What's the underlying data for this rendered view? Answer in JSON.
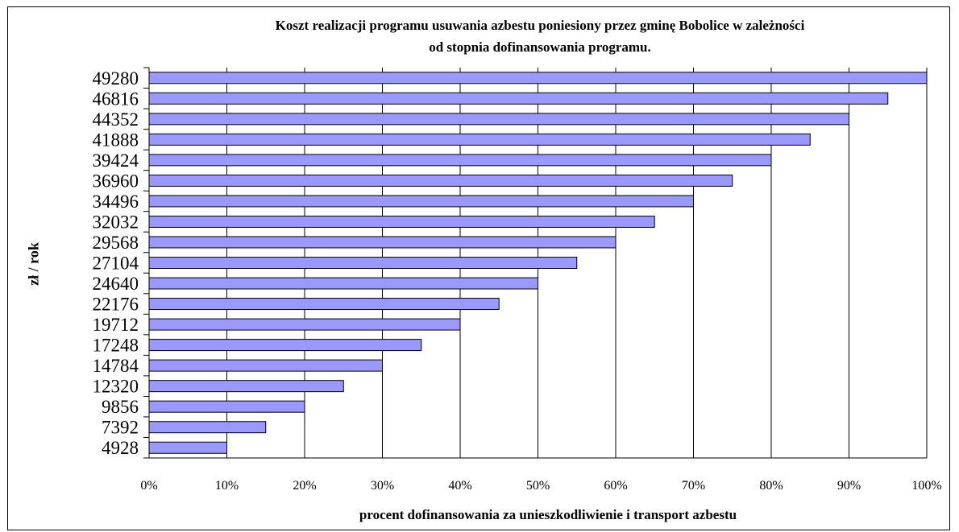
{
  "chart_data": {
    "type": "bar",
    "orientation": "horizontal",
    "title_line1": "Koszt realizacji programu usuwania azbestu poniesiony przez gminę Bobolice w zależności",
    "title_line2": "od stopnia dofinansowania programu.",
    "xlabel": "procent dofinansowania za unieszkodliwienie i transport azbestu",
    "ylabel": "zł / rok",
    "categories": [
      "49280",
      "46816",
      "44352",
      "41888",
      "39424",
      "36960",
      "34496",
      "32032",
      "29568",
      "27104",
      "24640",
      "22176",
      "19712",
      "17248",
      "14784",
      "12320",
      "9856",
      "7392",
      "4928"
    ],
    "values": [
      100,
      95,
      90,
      85,
      80,
      75,
      70,
      65,
      60,
      55,
      50,
      45,
      40,
      35,
      30,
      25,
      20,
      15,
      10
    ],
    "xlim": [
      0,
      100
    ],
    "xticks": [
      "0%",
      "10%",
      "20%",
      "30%",
      "40%",
      "50%",
      "60%",
      "70%",
      "80%",
      "90%",
      "100%"
    ],
    "grid": true,
    "legend": false,
    "bar_color": "#9999ff"
  }
}
